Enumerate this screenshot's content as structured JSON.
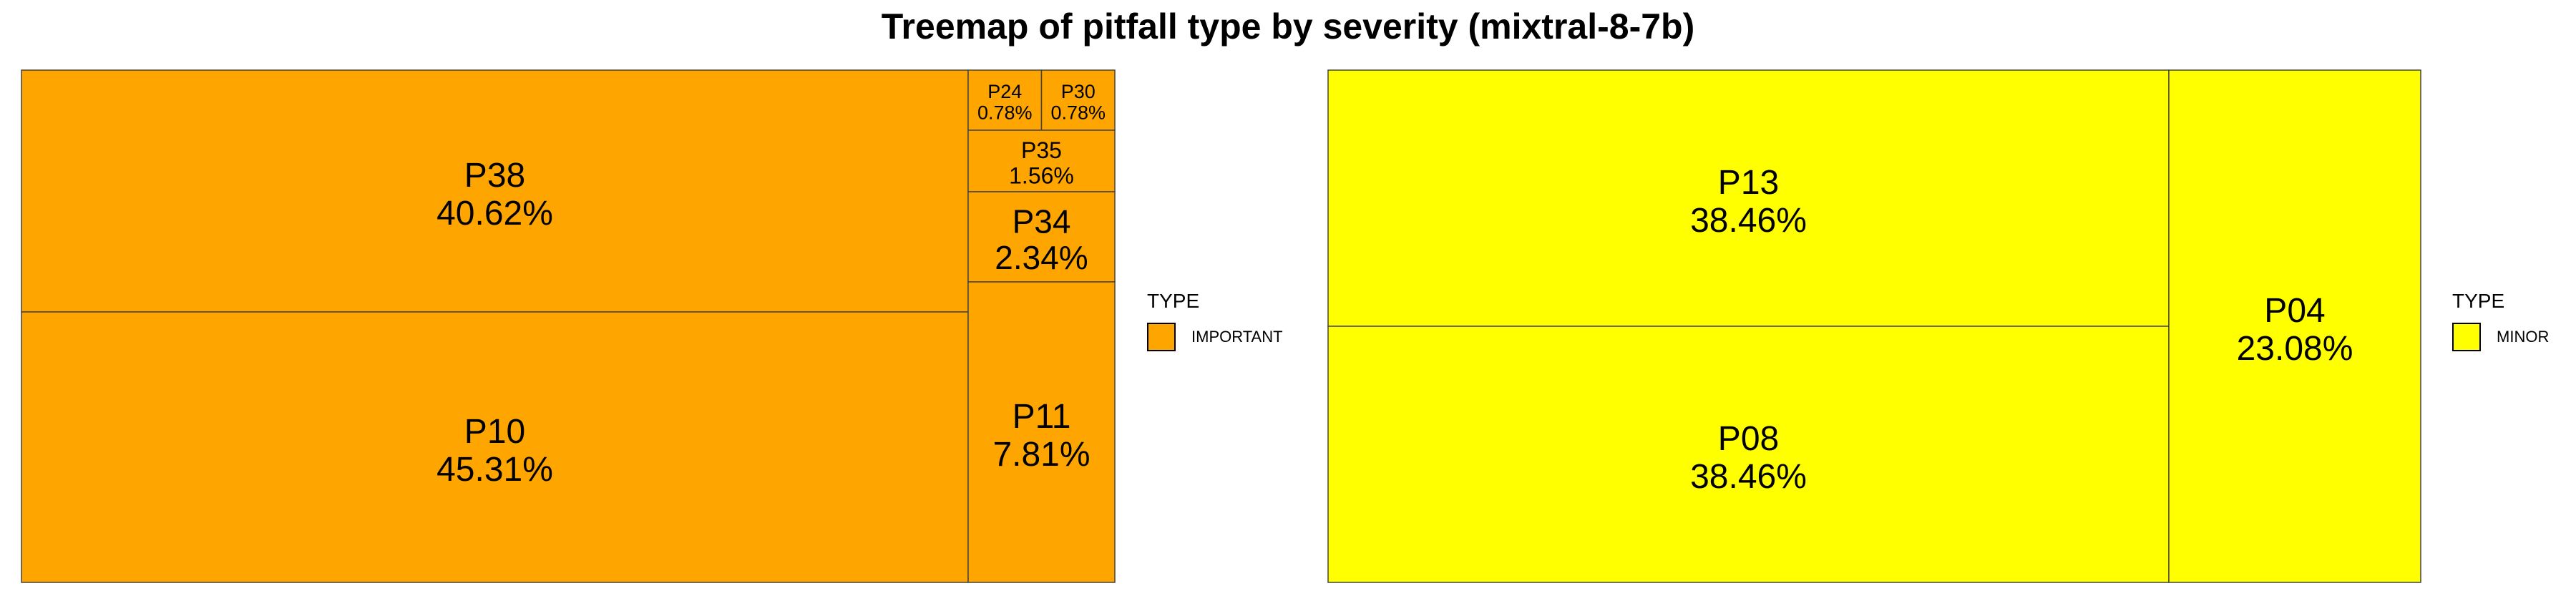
{
  "title": "Treemap of pitfall type by severity (mixtral-8-7b)",
  "legend_title": "TYPE",
  "chart_data": [
    {
      "type": "treemap",
      "category": "IMPORTANT",
      "color": "#FFA500",
      "legend_label": "IMPORTANT",
      "items": [
        {
          "label": "P38",
          "value": 40.62,
          "display": "40.62%"
        },
        {
          "label": "P10",
          "value": 45.31,
          "display": "45.31%"
        },
        {
          "label": "P24",
          "value": 0.78,
          "display": "0.78%"
        },
        {
          "label": "P30",
          "value": 0.78,
          "display": "0.78%"
        },
        {
          "label": "P35",
          "value": 1.56,
          "display": "1.56%"
        },
        {
          "label": "P34",
          "value": 2.34,
          "display": "2.34%"
        },
        {
          "label": "P11",
          "value": 7.81,
          "display": "7.81%"
        }
      ]
    },
    {
      "type": "treemap",
      "category": "MINOR",
      "color": "#FFFF00",
      "legend_label": "MINOR",
      "items": [
        {
          "label": "P13",
          "value": 38.46,
          "display": "38.46%"
        },
        {
          "label": "P08",
          "value": 38.46,
          "display": "38.46%"
        },
        {
          "label": "P04",
          "value": 23.08,
          "display": "23.08%"
        }
      ]
    }
  ]
}
